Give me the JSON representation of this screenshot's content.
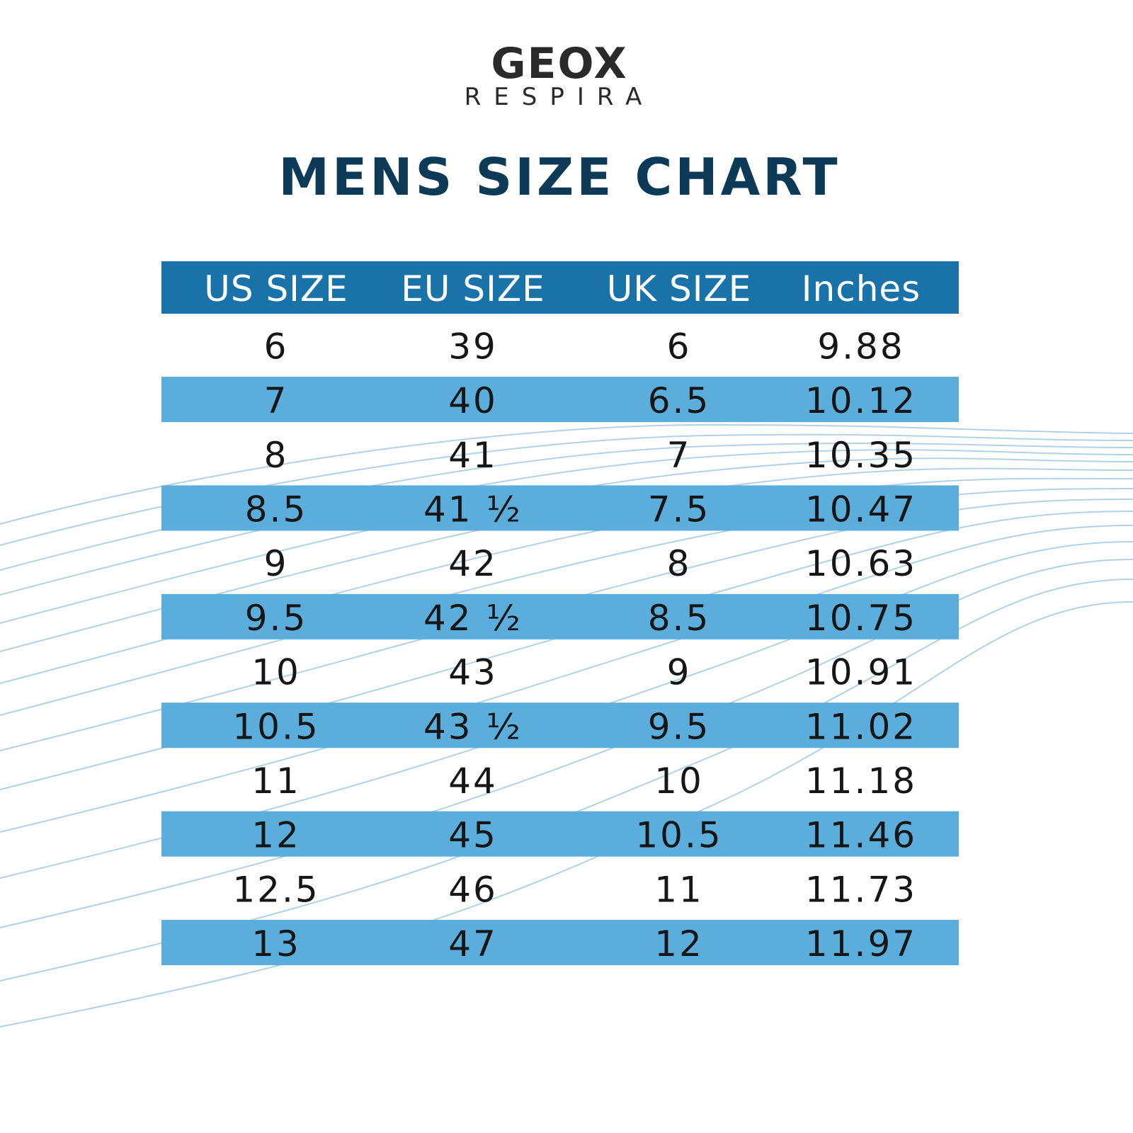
{
  "header": {
    "brand": "GEOX",
    "subtitle": "RESPIRA"
  },
  "title": "MENS SIZE CHART",
  "table": {
    "columns": [
      "US SIZE",
      "EU SIZE",
      "UK SIZE",
      "Inches"
    ],
    "rows": [
      [
        "6",
        "39",
        "6",
        "9.88"
      ],
      [
        "7",
        "40",
        "6.5",
        "10.12"
      ],
      [
        "8",
        "41",
        "7",
        "10.35"
      ],
      [
        "8.5",
        "41 ½",
        "7.5",
        "10.47"
      ],
      [
        "9",
        "42",
        "8",
        "10.63"
      ],
      [
        "9.5",
        "42 ½",
        "8.5",
        "10.75"
      ],
      [
        "10",
        "43",
        "9",
        "10.91"
      ],
      [
        "10.5",
        "43 ½",
        "9.5",
        "11.02"
      ],
      [
        "11",
        "44",
        "10",
        "11.18"
      ],
      [
        "12",
        "45",
        "10.5",
        "11.46"
      ],
      [
        "12.5",
        "46",
        "11",
        "11.73"
      ],
      [
        "13",
        "47",
        "12",
        "11.97"
      ]
    ]
  }
}
